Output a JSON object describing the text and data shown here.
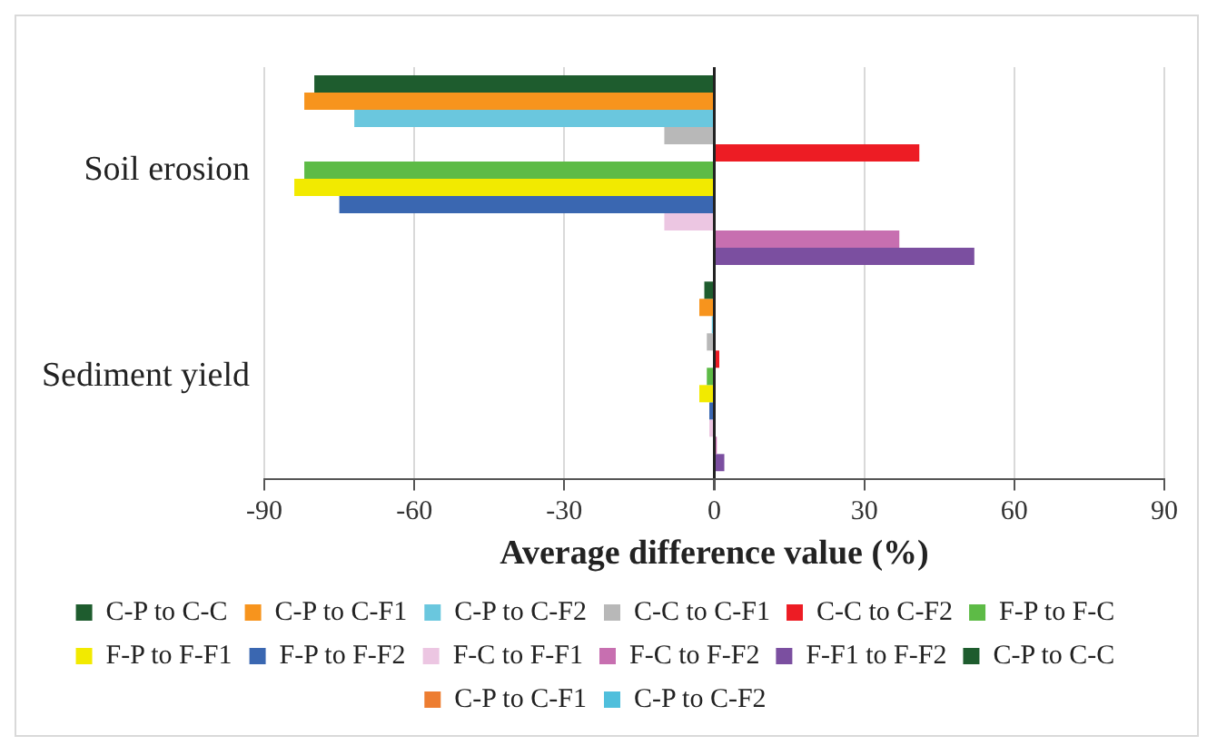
{
  "chart_data": {
    "type": "bar",
    "orientation": "horizontal",
    "xlabel": "Average difference value (%)",
    "categories": [
      "Soil erosion",
      "Sediment yield"
    ],
    "xlim": [
      -90,
      90
    ],
    "xticks": [
      -90,
      -60,
      -30,
      0,
      30,
      60,
      90
    ],
    "grid": "x",
    "legend": "bottom",
    "series": [
      {
        "name": "C-P to C-C",
        "color": "#1e5c2e",
        "values": [
          -80,
          -2
        ]
      },
      {
        "name": "C-P to C-F1",
        "color": "#f7941d",
        "values": [
          -82,
          -3
        ]
      },
      {
        "name": "C-P to C-F2",
        "color": "#6ac7de",
        "values": [
          -72,
          -0.5
        ]
      },
      {
        "name": "C-C to C-F1",
        "color": "#b8b8b8",
        "values": [
          -10,
          -1.5
        ]
      },
      {
        "name": "C-C to C-F2",
        "color": "#ed1c24",
        "values": [
          41,
          1
        ]
      },
      {
        "name": "F-P to F-C",
        "color": "#5dbb46",
        "values": [
          -82,
          -1.5
        ]
      },
      {
        "name": "F-P to F-F1",
        "color": "#f2ea00",
        "values": [
          -84,
          -3
        ]
      },
      {
        "name": "F-P to F-F2",
        "color": "#3a67b1",
        "values": [
          -75,
          -1
        ]
      },
      {
        "name": "F-C to F-F1",
        "color": "#ecc6e2",
        "values": [
          -10,
          -1
        ]
      },
      {
        "name": "F-C to F-F2",
        "color": "#c76fb0",
        "values": [
          37,
          0.5
        ]
      },
      {
        "name": "F-F1 to F-F2",
        "color": "#7b4fa0",
        "values": [
          52,
          2
        ]
      },
      {
        "name": "C-P to C-C",
        "color": "#1e5c2e",
        "values": [
          null,
          null
        ]
      },
      {
        "name": "C-P to C-F1",
        "color": "#ed7d31",
        "values": [
          null,
          null
        ]
      },
      {
        "name": "C-P to C-F2",
        "color": "#4fbfdc",
        "values": [
          null,
          null
        ]
      }
    ]
  }
}
